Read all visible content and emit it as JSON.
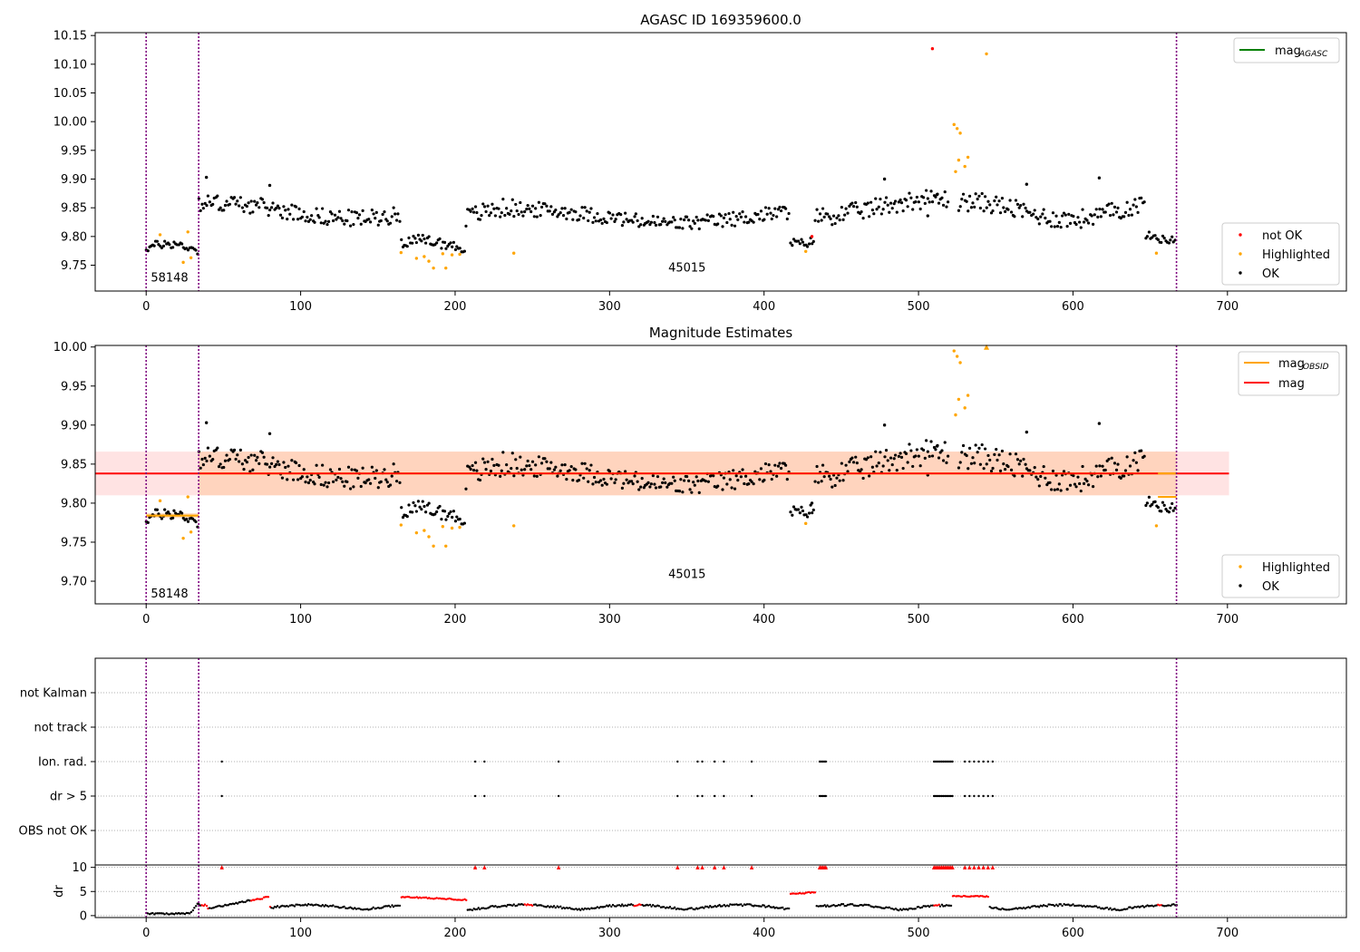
{
  "chart_data": [
    {
      "type": "scatter",
      "title": "AGASC ID 169359600.0",
      "xlabel": "",
      "ylabel": "",
      "xlim": [
        -33,
        777
      ],
      "ylim": [
        9.705,
        10.155
      ],
      "xticks": [
        "0",
        "100",
        "200",
        "300",
        "400",
        "500",
        "600",
        "700"
      ],
      "yticks": [
        "9.75",
        "9.80",
        "9.85",
        "9.90",
        "9.95",
        "10.00",
        "10.05",
        "10.10",
        "10.15"
      ],
      "vlines": [
        0,
        34,
        667
      ],
      "annotations": [
        {
          "text": "58148",
          "x": 3,
          "y": 9.728
        },
        {
          "text": "45015",
          "x": 338,
          "y": 9.745
        }
      ],
      "legend_lines": [
        {
          "name_main": "mag",
          "name_sub": "AGASC",
          "color": "#008000",
          "placement": "top-right"
        }
      ],
      "legend_points": [
        {
          "name": "not OK",
          "color": "#ff0000"
        },
        {
          "name": "Highlighted",
          "color": "#ffa500"
        },
        {
          "name": "OK",
          "color": "#000000"
        }
      ],
      "segments": [
        {
          "x": [
            0,
            34
          ],
          "base": 9.78,
          "amp": 0.012,
          "freq": 1.1
        },
        {
          "x": [
            34,
            165
          ],
          "base": 9.845,
          "amp": 0.022,
          "freq": 0.35
        },
        {
          "x": [
            165,
            207
          ],
          "base": 9.785,
          "amp": 0.014,
          "freq": 0.8
        },
        {
          "x": [
            207,
            238
          ],
          "base": 9.835,
          "amp": 0.025,
          "freq": 0.6
        },
        {
          "x": [
            238,
            417
          ],
          "base": 9.835,
          "amp": 0.02,
          "freq": 0.32
        },
        {
          "x": [
            417,
            433
          ],
          "base": 9.795,
          "amp": 0.012,
          "freq": 1.3
        },
        {
          "x": [
            433,
            520
          ],
          "base": 9.85,
          "amp": 0.025,
          "freq": 0.4
        },
        {
          "x": [
            526,
            647
          ],
          "base": 9.845,
          "amp": 0.025,
          "freq": 0.5
        },
        {
          "x": [
            647,
            667
          ],
          "base": 9.8,
          "amp": 0.01,
          "freq": 1.4
        }
      ],
      "extra_points": [
        {
          "x": 509,
          "y": 10.127,
          "color": "#ff0000"
        },
        {
          "x": 544,
          "y": 10.118,
          "color": "#ffa500"
        },
        {
          "x": 523,
          "y": 9.995,
          "color": "#ffa500"
        },
        {
          "x": 525,
          "y": 9.988,
          "color": "#ffa500"
        },
        {
          "x": 527,
          "y": 9.98,
          "color": "#ffa500"
        },
        {
          "x": 524,
          "y": 9.913,
          "color": "#ffa500"
        },
        {
          "x": 526,
          "y": 9.933,
          "color": "#ffa500"
        },
        {
          "x": 530,
          "y": 9.922,
          "color": "#ffa500"
        },
        {
          "x": 532,
          "y": 9.938,
          "color": "#ffa500"
        },
        {
          "x": 9,
          "y": 9.803,
          "color": "#ffa500"
        },
        {
          "x": 24,
          "y": 9.755,
          "color": "#ffa500"
        },
        {
          "x": 27,
          "y": 9.808,
          "color": "#ffa500"
        },
        {
          "x": 29,
          "y": 9.763,
          "color": "#ffa500"
        },
        {
          "x": 165,
          "y": 9.772,
          "color": "#ffa500"
        },
        {
          "x": 175,
          "y": 9.762,
          "color": "#ffa500"
        },
        {
          "x": 180,
          "y": 9.765,
          "color": "#ffa500"
        },
        {
          "x": 183,
          "y": 9.757,
          "color": "#ffa500"
        },
        {
          "x": 186,
          "y": 9.745,
          "color": "#ffa500"
        },
        {
          "x": 192,
          "y": 9.77,
          "color": "#ffa500"
        },
        {
          "x": 194,
          "y": 9.745,
          "color": "#ffa500"
        },
        {
          "x": 198,
          "y": 9.768,
          "color": "#ffa500"
        },
        {
          "x": 203,
          "y": 9.769,
          "color": "#ffa500"
        },
        {
          "x": 238,
          "y": 9.771,
          "color": "#ffa500"
        },
        {
          "x": 427,
          "y": 9.774,
          "color": "#ffa500"
        },
        {
          "x": 431,
          "y": 9.8,
          "color": "#ff0000"
        },
        {
          "x": 654,
          "y": 9.771,
          "color": "#ffa500"
        },
        {
          "x": 506,
          "y": 9.836,
          "color": "#000000"
        },
        {
          "x": 512,
          "y": 9.873,
          "color": "#000000"
        },
        {
          "x": 570,
          "y": 9.891,
          "color": "#000000"
        },
        {
          "x": 617,
          "y": 9.902,
          "color": "#000000"
        },
        {
          "x": 478,
          "y": 9.9,
          "color": "#000000"
        },
        {
          "x": 39,
          "y": 9.903,
          "color": "#000000"
        },
        {
          "x": 80,
          "y": 9.889,
          "color": "#000000"
        }
      ]
    },
    {
      "type": "scatter",
      "title": "Magnitude Estimates",
      "xlabel": "",
      "ylabel": "",
      "xlim": [
        -33,
        777
      ],
      "ylim": [
        9.671,
        10.002
      ],
      "xticks": [
        "0",
        "100",
        "200",
        "300",
        "400",
        "500",
        "600",
        "700"
      ],
      "yticks": [
        "9.70",
        "9.75",
        "9.80",
        "9.85",
        "9.90",
        "9.95",
        "10.00"
      ],
      "vlines": [
        0,
        34,
        667
      ],
      "annotations": [
        {
          "text": "58148",
          "x": 3,
          "y": 9.684
        },
        {
          "text": "45015",
          "x": 338,
          "y": 9.709
        }
      ],
      "mag_level": 9.838,
      "mag_band": [
        9.81,
        9.866
      ],
      "mag_band_x": [
        -33,
        701
      ],
      "obsid_segments": [
        {
          "x": [
            0,
            34
          ],
          "y": 9.784
        },
        {
          "x": [
            34,
            667
          ],
          "y": 9.838
        },
        {
          "x": [
            655,
            667
          ],
          "y": 9.808
        }
      ],
      "legend_lines": [
        {
          "name_main": "mag",
          "name_sub": "OBSID",
          "color": "#ffa500",
          "placement": "top-right"
        },
        {
          "name_main": "mag",
          "name_sub": "",
          "color": "#ff0000"
        }
      ],
      "legend_points": [
        {
          "name": "Highlighted",
          "color": "#ffa500"
        },
        {
          "name": "OK",
          "color": "#000000"
        }
      ]
    },
    {
      "type": "scatter",
      "title": "",
      "xlabel": "",
      "ylabel": "",
      "xlim": [
        -33,
        777
      ],
      "flag_rows": [
        "not Kalman",
        "not track",
        "Ion. rad.",
        "dr > 5",
        "OBS not OK"
      ],
      "flag_x": [
        49,
        213,
        219,
        267,
        344,
        357,
        360,
        368,
        374,
        392,
        436,
        437,
        438,
        439,
        440,
        510,
        511,
        512,
        513,
        514,
        515,
        516,
        517,
        518,
        519,
        520,
        521,
        522,
        530,
        533,
        536,
        539,
        542,
        545,
        548
      ],
      "xticks": [
        "0",
        "100",
        "200",
        "300",
        "400",
        "500",
        "600",
        "700"
      ],
      "vlines": [
        0,
        34,
        667
      ]
    },
    {
      "type": "scatter",
      "title": "",
      "xlabel": "",
      "ylabel": "dr",
      "xlim": [
        -33,
        777
      ],
      "ylim": [
        -0.4,
        10.5
      ],
      "yticks": [
        "0",
        "5",
        "10"
      ],
      "xticks": [
        "0",
        "100",
        "200",
        "300",
        "400",
        "500",
        "600",
        "700"
      ],
      "vlines": [
        0,
        34,
        667
      ],
      "red_ranges": [
        [
          36,
          40
        ],
        [
          68,
          80
        ],
        [
          165,
          207
        ],
        [
          245,
          250
        ],
        [
          316,
          320
        ],
        [
          417,
          433
        ],
        [
          510,
          513
        ],
        [
          522,
          545
        ],
        [
          655,
          657
        ]
      ],
      "high_ranges": [
        {
          "x": [
            165,
            207
          ],
          "level": 3.9,
          "slope": -0.015
        },
        {
          "x": [
            417,
            433
          ],
          "level": 4.5,
          "slope": 0.02
        },
        {
          "x": [
            522,
            545
          ],
          "level": 4.0,
          "slope": 0.0
        }
      ],
      "clipped_x": [
        49,
        213,
        219,
        267,
        344,
        357,
        360,
        368,
        374,
        392,
        436,
        437,
        438,
        439,
        440,
        510,
        511,
        512,
        513,
        514,
        515,
        516,
        517,
        518,
        519,
        520,
        521,
        522,
        530,
        533,
        536,
        539,
        542,
        545,
        548
      ]
    }
  ]
}
